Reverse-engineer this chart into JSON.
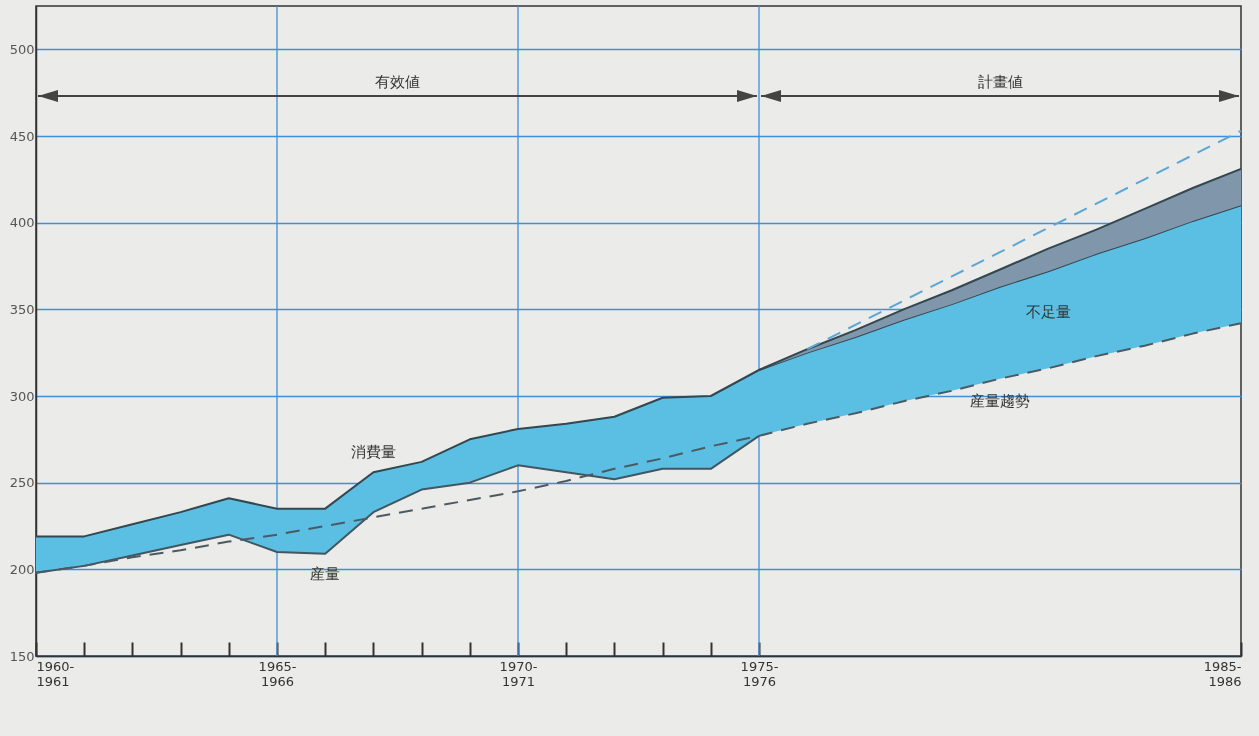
{
  "chart_data": {
    "type": "line",
    "categories": [
      "1960-1961",
      null,
      null,
      null,
      null,
      "1965-1966",
      null,
      null,
      null,
      null,
      "1970-1971",
      null,
      null,
      null,
      null,
      "1975-1976",
      null,
      null,
      null,
      null,
      null,
      null,
      null,
      null,
      null,
      "1985-1986"
    ],
    "ylim": [
      150,
      525
    ],
    "yticks": [
      150,
      200,
      250,
      300,
      350,
      400,
      450,
      500
    ],
    "grid": true,
    "series": [
      {
        "name": "消費量",
        "type": "area",
        "color": "#5bbfe3",
        "values": [
          219,
          219,
          226,
          233,
          241,
          235,
          235,
          256,
          262,
          275,
          281,
          284,
          288,
          299,
          300,
          315,
          325,
          334,
          344,
          353,
          363,
          372,
          382,
          391,
          401,
          410
        ]
      },
      {
        "type": "area",
        "color": "#8096ab",
        "values": [
          null,
          null,
          null,
          null,
          null,
          null,
          null,
          null,
          null,
          null,
          null,
          null,
          null,
          null,
          null,
          315,
          327,
          338,
          350,
          361,
          373,
          385,
          396,
          408,
          420,
          431
        ]
      },
      {
        "name": "産量",
        "color": "#415660",
        "line_style": "solid",
        "values": [
          198,
          202,
          208,
          214,
          220,
          210,
          209,
          233,
          246,
          250,
          260,
          256,
          252,
          258,
          258,
          277,
          null,
          null,
          null,
          null,
          null,
          null,
          null,
          null,
          null,
          null
        ]
      },
      {
        "name": "産量趨勢",
        "color": "#4b5a62",
        "line_style": "dashed",
        "values": [
          198,
          202,
          207,
          211,
          216,
          220,
          225,
          230,
          235,
          240,
          245,
          251,
          258,
          264,
          271,
          277,
          284,
          290,
          297,
          303,
          310,
          316,
          323,
          329,
          336,
          342
        ]
      },
      {
        "color": "#5aa6d6",
        "line_style": "dashed",
        "values": [
          null,
          null,
          null,
          null,
          null,
          null,
          null,
          null,
          null,
          null,
          null,
          null,
          null,
          null,
          null,
          null,
          327,
          341,
          355,
          369,
          383,
          397,
          411,
          425,
          439,
          453
        ]
      }
    ],
    "annotations": [
      "有效値",
      "計畫値",
      "不足量"
    ]
  }
}
